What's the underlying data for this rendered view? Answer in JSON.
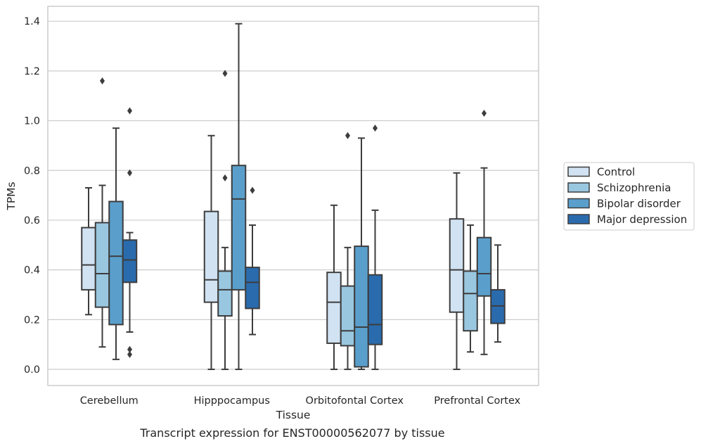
{
  "caption": "Transcript expression for ENST00000562077 by tissue",
  "colors": {
    "Control": "#d1e2f2",
    "Schizophrenia": "#9ac7e0",
    "Bipolar disorder": "#5a9fcc",
    "Major depression": "#2a6bae",
    "line": "#3d3d3d",
    "grid": "#cccccc",
    "frame": "#cccccc"
  },
  "chart_data": {
    "type": "box",
    "xlabel": "Tissue",
    "ylabel": "TPMs",
    "ylim": [
      -0.065,
      1.46
    ],
    "yticks": [
      0.0,
      0.2,
      0.4,
      0.6,
      0.8,
      1.0,
      1.2,
      1.4
    ],
    "grid": "horizontal",
    "legend_position": "right",
    "categories": [
      "Cerebellum",
      "Hipppocampus",
      "Orbitofontal Cortex",
      "Prefrontal Cortex"
    ],
    "hue_order": [
      "Control",
      "Schizophrenia",
      "Bipolar disorder",
      "Major depression"
    ],
    "series": [
      {
        "name": "Control",
        "boxes": [
          {
            "min": 0.22,
            "q1": 0.32,
            "median": 0.42,
            "q3": 0.57,
            "max": 0.73,
            "outliers": []
          },
          {
            "min": 0.0,
            "q1": 0.27,
            "median": 0.36,
            "q3": 0.635,
            "max": 0.94,
            "outliers": []
          },
          {
            "min": 0.0,
            "q1": 0.105,
            "median": 0.27,
            "q3": 0.39,
            "max": 0.66,
            "outliers": []
          },
          {
            "min": 0.0,
            "q1": 0.23,
            "median": 0.4,
            "q3": 0.605,
            "max": 0.79,
            "outliers": []
          }
        ]
      },
      {
        "name": "Schizophrenia",
        "boxes": [
          {
            "min": 0.09,
            "q1": 0.25,
            "median": 0.385,
            "q3": 0.59,
            "max": 0.74,
            "outliers": [
              1.16
            ]
          },
          {
            "min": 0.0,
            "q1": 0.215,
            "median": 0.32,
            "q3": 0.395,
            "max": 0.49,
            "outliers": [
              0.77,
              1.19
            ]
          },
          {
            "min": 0.0,
            "q1": 0.095,
            "median": 0.155,
            "q3": 0.335,
            "max": 0.49,
            "outliers": [
              0.94
            ]
          },
          {
            "min": 0.07,
            "q1": 0.155,
            "median": 0.305,
            "q3": 0.395,
            "max": 0.58,
            "outliers": []
          }
        ]
      },
      {
        "name": "Bipolar disorder",
        "boxes": [
          {
            "min": 0.04,
            "q1": 0.18,
            "median": 0.455,
            "q3": 0.675,
            "max": 0.97,
            "outliers": []
          },
          {
            "min": 0.0,
            "q1": 0.32,
            "median": 0.685,
            "q3": 0.82,
            "max": 1.39,
            "outliers": []
          },
          {
            "min": 0.0,
            "q1": 0.01,
            "median": 0.17,
            "q3": 0.495,
            "max": 0.93,
            "outliers": []
          },
          {
            "min": 0.06,
            "q1": 0.295,
            "median": 0.385,
            "q3": 0.53,
            "max": 0.81,
            "outliers": [
              1.03
            ]
          }
        ]
      },
      {
        "name": "Major depression",
        "boxes": [
          {
            "min": 0.15,
            "q1": 0.35,
            "median": 0.44,
            "q3": 0.52,
            "max": 0.55,
            "outliers": [
              0.06,
              0.08,
              0.79,
              1.04
            ]
          },
          {
            "min": 0.14,
            "q1": 0.245,
            "median": 0.35,
            "q3": 0.41,
            "max": 0.58,
            "outliers": [
              0.72
            ]
          },
          {
            "min": 0.0,
            "q1": 0.1,
            "median": 0.18,
            "q3": 0.38,
            "max": 0.64,
            "outliers": [
              0.97
            ]
          },
          {
            "min": 0.11,
            "q1": 0.185,
            "median": 0.255,
            "q3": 0.32,
            "max": 0.5,
            "outliers": []
          }
        ]
      }
    ]
  }
}
